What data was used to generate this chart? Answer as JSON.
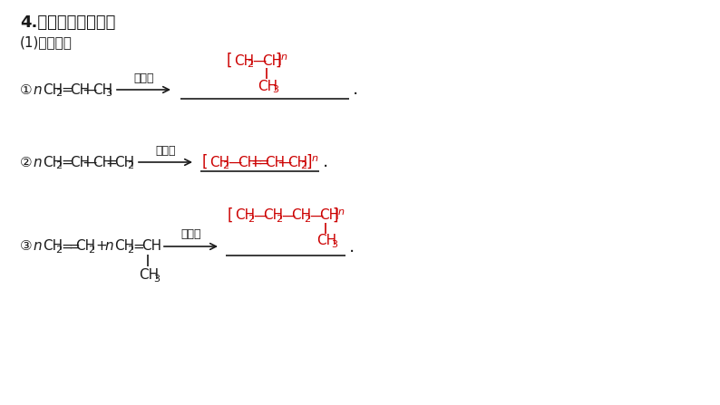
{
  "title": "4.按要求完成方程式",
  "subtitle": "(1)加聚反应",
  "catalyst": "催化剂",
  "background_color": "#ffffff",
  "black_color": "#1a1a1a",
  "red_color": "#cc0000",
  "figsize": [
    7.94,
    4.47
  ],
  "dpi": 100
}
